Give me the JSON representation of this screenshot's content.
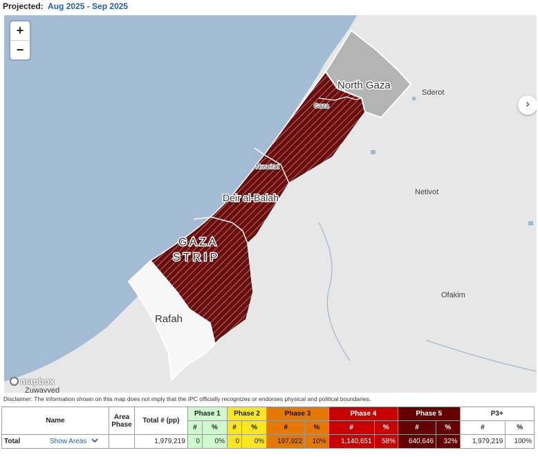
{
  "header": {
    "projected_label": "Projected:",
    "period": "Aug 2025 - Sep 2025"
  },
  "map": {
    "zoom_in": "+",
    "zoom_out": "−",
    "next_arrow": "›",
    "labels": {
      "north_gaza": "North Gaza",
      "gaza": "Gaza",
      "nuseirat": "Nuseirat",
      "deir_al_balah": "Deir al-Balah",
      "gaza_strip_1": "G A Z A",
      "gaza_strip_2": "S T R I P",
      "rafah": "Rafah",
      "sderot": "Sderot",
      "netivot": "Netivot",
      "ofakim": "Ofakim",
      "zuwayyed": "Zuwayyed"
    },
    "attribution": "mapbox",
    "colors": {
      "sea": "#a3bcd3",
      "land": "#e7e7e7",
      "phase5": "#6a0d0d",
      "north_gaza": "#b4b4b4",
      "rafah": "#f7f7f7"
    }
  },
  "disclaimer": "Disclaimer: The information shown on this map does not imply that the IPC officially recognizes or endorses physical and political boundaries.",
  "table": {
    "headers": {
      "name": "Name",
      "area_phase": "Area Phase",
      "total": "Total # (pp)",
      "phase1": "Phase 1",
      "phase2": "Phase 2",
      "phase3": "Phase 3",
      "phase4": "Phase 4",
      "phase5": "Phase 5",
      "p3plus": "P3+",
      "num": "#",
      "pct": "%"
    },
    "total_row": {
      "label": "Total",
      "show_areas": "Show Areas",
      "area_phase": "",
      "total": "1,979,219",
      "phase1_num": "0",
      "phase1_pct": "0%",
      "phase2_num": "0",
      "phase2_pct": "0%",
      "phase3_num": "197,922",
      "phase3_pct": "10%",
      "phase4_num": "1,140,651",
      "phase4_pct": "58%",
      "phase5_num": "640,646",
      "phase5_pct": "32%",
      "p3plus_num": "1,979,219",
      "p3plus_pct": "100%"
    }
  }
}
